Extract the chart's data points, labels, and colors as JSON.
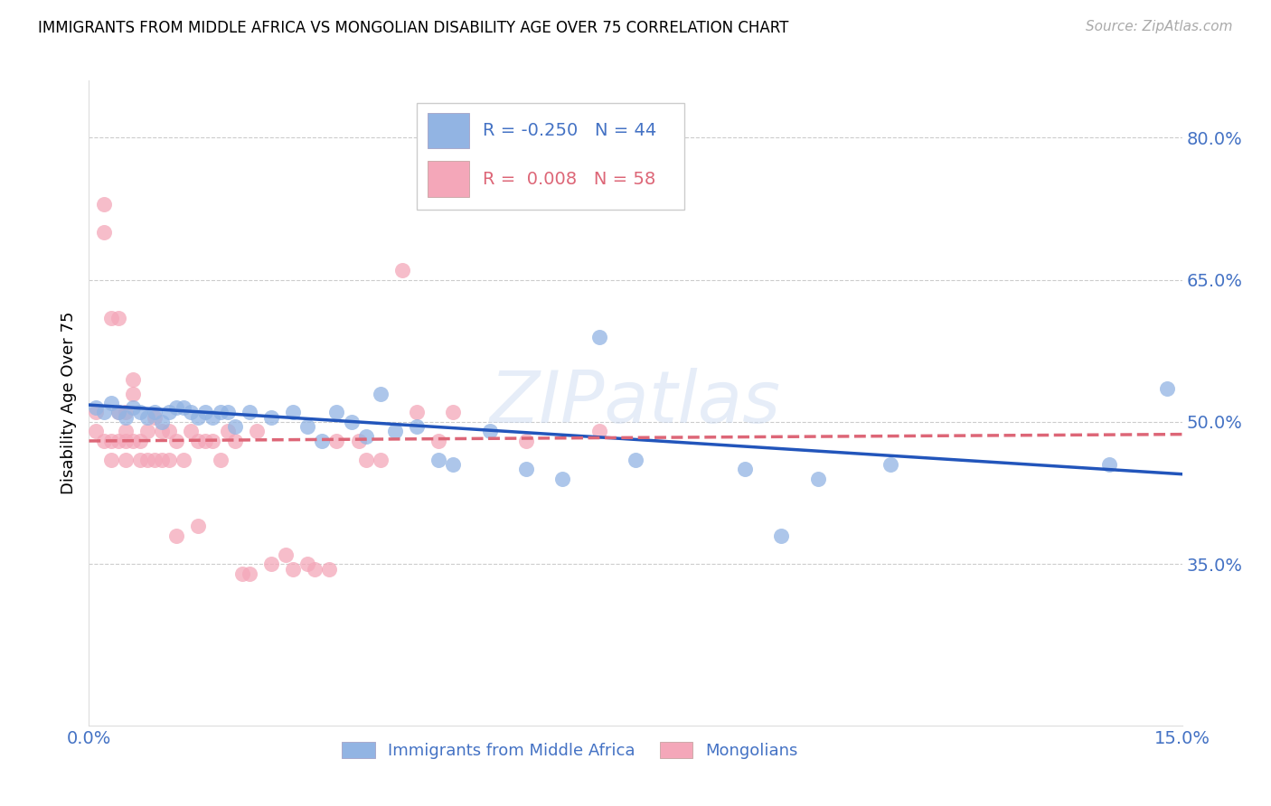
{
  "title": "IMMIGRANTS FROM MIDDLE AFRICA VS MONGOLIAN DISABILITY AGE OVER 75 CORRELATION CHART",
  "source": "Source: ZipAtlas.com",
  "ylabel": "Disability Age Over 75",
  "xmin": 0.0,
  "xmax": 0.15,
  "ymin": 0.18,
  "ymax": 0.86,
  "yticks": [
    0.35,
    0.5,
    0.65,
    0.8
  ],
  "ytick_labels": [
    "35.0%",
    "50.0%",
    "65.0%",
    "80.0%"
  ],
  "xticks": [
    0.0,
    0.05,
    0.1,
    0.15
  ],
  "xtick_labels": [
    "0.0%",
    "",
    "",
    "15.0%"
  ],
  "blue_R": -0.25,
  "blue_N": 44,
  "pink_R": 0.008,
  "pink_N": 58,
  "blue_color": "#92b4e3",
  "pink_color": "#f4a7b9",
  "blue_line_color": "#2255bb",
  "pink_line_color": "#dd6677",
  "legend_label_blue": "Immigrants from Middle Africa",
  "legend_label_pink": "Mongolians",
  "watermark": "ZIPatlas",
  "blue_x": [
    0.001,
    0.002,
    0.003,
    0.004,
    0.005,
    0.006,
    0.007,
    0.008,
    0.009,
    0.01,
    0.011,
    0.012,
    0.013,
    0.014,
    0.015,
    0.016,
    0.017,
    0.018,
    0.019,
    0.02,
    0.022,
    0.025,
    0.028,
    0.03,
    0.032,
    0.034,
    0.036,
    0.038,
    0.04,
    0.042,
    0.045,
    0.048,
    0.05,
    0.055,
    0.06,
    0.065,
    0.07,
    0.075,
    0.09,
    0.095,
    0.1,
    0.11,
    0.14,
    0.148
  ],
  "blue_y": [
    0.515,
    0.51,
    0.52,
    0.51,
    0.505,
    0.515,
    0.51,
    0.505,
    0.51,
    0.5,
    0.51,
    0.515,
    0.515,
    0.51,
    0.505,
    0.51,
    0.505,
    0.51,
    0.51,
    0.495,
    0.51,
    0.505,
    0.51,
    0.495,
    0.48,
    0.51,
    0.5,
    0.485,
    0.53,
    0.49,
    0.495,
    0.46,
    0.455,
    0.49,
    0.45,
    0.44,
    0.59,
    0.46,
    0.45,
    0.38,
    0.44,
    0.455,
    0.455,
    0.535
  ],
  "pink_x": [
    0.001,
    0.001,
    0.002,
    0.002,
    0.002,
    0.003,
    0.003,
    0.003,
    0.004,
    0.004,
    0.004,
    0.005,
    0.005,
    0.005,
    0.005,
    0.006,
    0.006,
    0.006,
    0.007,
    0.007,
    0.008,
    0.008,
    0.009,
    0.009,
    0.01,
    0.01,
    0.011,
    0.011,
    0.012,
    0.012,
    0.013,
    0.014,
    0.015,
    0.015,
    0.016,
    0.017,
    0.018,
    0.019,
    0.02,
    0.021,
    0.022,
    0.023,
    0.025,
    0.027,
    0.028,
    0.03,
    0.031,
    0.033,
    0.034,
    0.037,
    0.038,
    0.04,
    0.043,
    0.045,
    0.048,
    0.05,
    0.06,
    0.07
  ],
  "pink_y": [
    0.51,
    0.49,
    0.73,
    0.7,
    0.48,
    0.61,
    0.48,
    0.46,
    0.61,
    0.51,
    0.48,
    0.51,
    0.49,
    0.48,
    0.46,
    0.545,
    0.53,
    0.48,
    0.48,
    0.46,
    0.49,
    0.46,
    0.505,
    0.46,
    0.49,
    0.46,
    0.49,
    0.46,
    0.48,
    0.38,
    0.46,
    0.49,
    0.48,
    0.39,
    0.48,
    0.48,
    0.46,
    0.49,
    0.48,
    0.34,
    0.34,
    0.49,
    0.35,
    0.36,
    0.345,
    0.35,
    0.345,
    0.345,
    0.48,
    0.48,
    0.46,
    0.46,
    0.66,
    0.51,
    0.48,
    0.51,
    0.48,
    0.49
  ]
}
